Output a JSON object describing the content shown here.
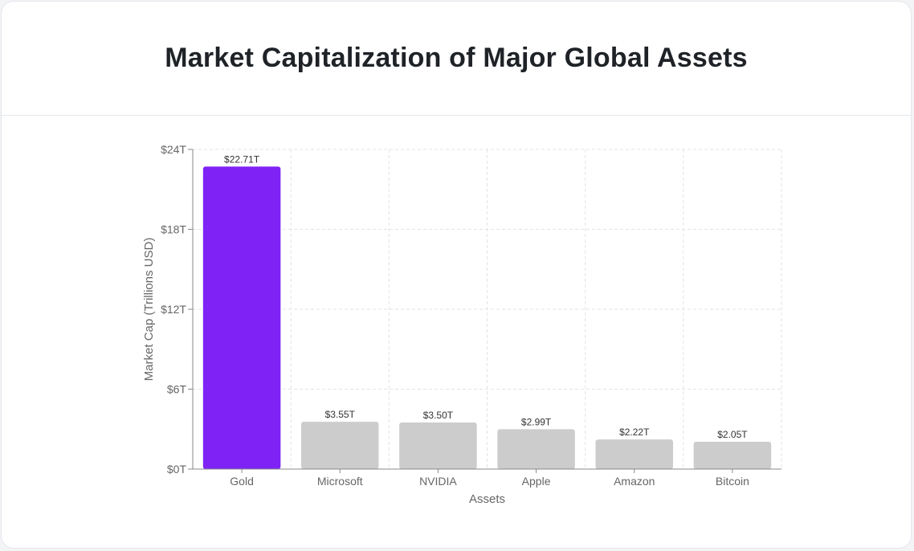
{
  "header": {
    "title": "Market Capitalization of Major Global Assets"
  },
  "chart_data": {
    "type": "bar",
    "title": "Market Capitalization of Major Global Assets",
    "xlabel": "Assets",
    "ylabel": "Market Cap (Trillions USD)",
    "categories": [
      "Gold",
      "Microsoft",
      "NVIDIA",
      "Apple",
      "Amazon",
      "Bitcoin"
    ],
    "values": [
      22.71,
      3.55,
      3.5,
      2.99,
      2.22,
      2.05
    ],
    "value_labels": [
      "$22.71T",
      "$3.55T",
      "$3.50T",
      "$2.99T",
      "$2.22T",
      "$2.05T"
    ],
    "ylim": [
      0,
      24
    ],
    "yticks": [
      0,
      6,
      12,
      18,
      24
    ],
    "ytick_labels": [
      "$0T",
      "$6T",
      "$12T",
      "$18T",
      "$24T"
    ],
    "grid": true,
    "highlight_color": "#7e22f5",
    "bar_color": "#cccccc"
  }
}
